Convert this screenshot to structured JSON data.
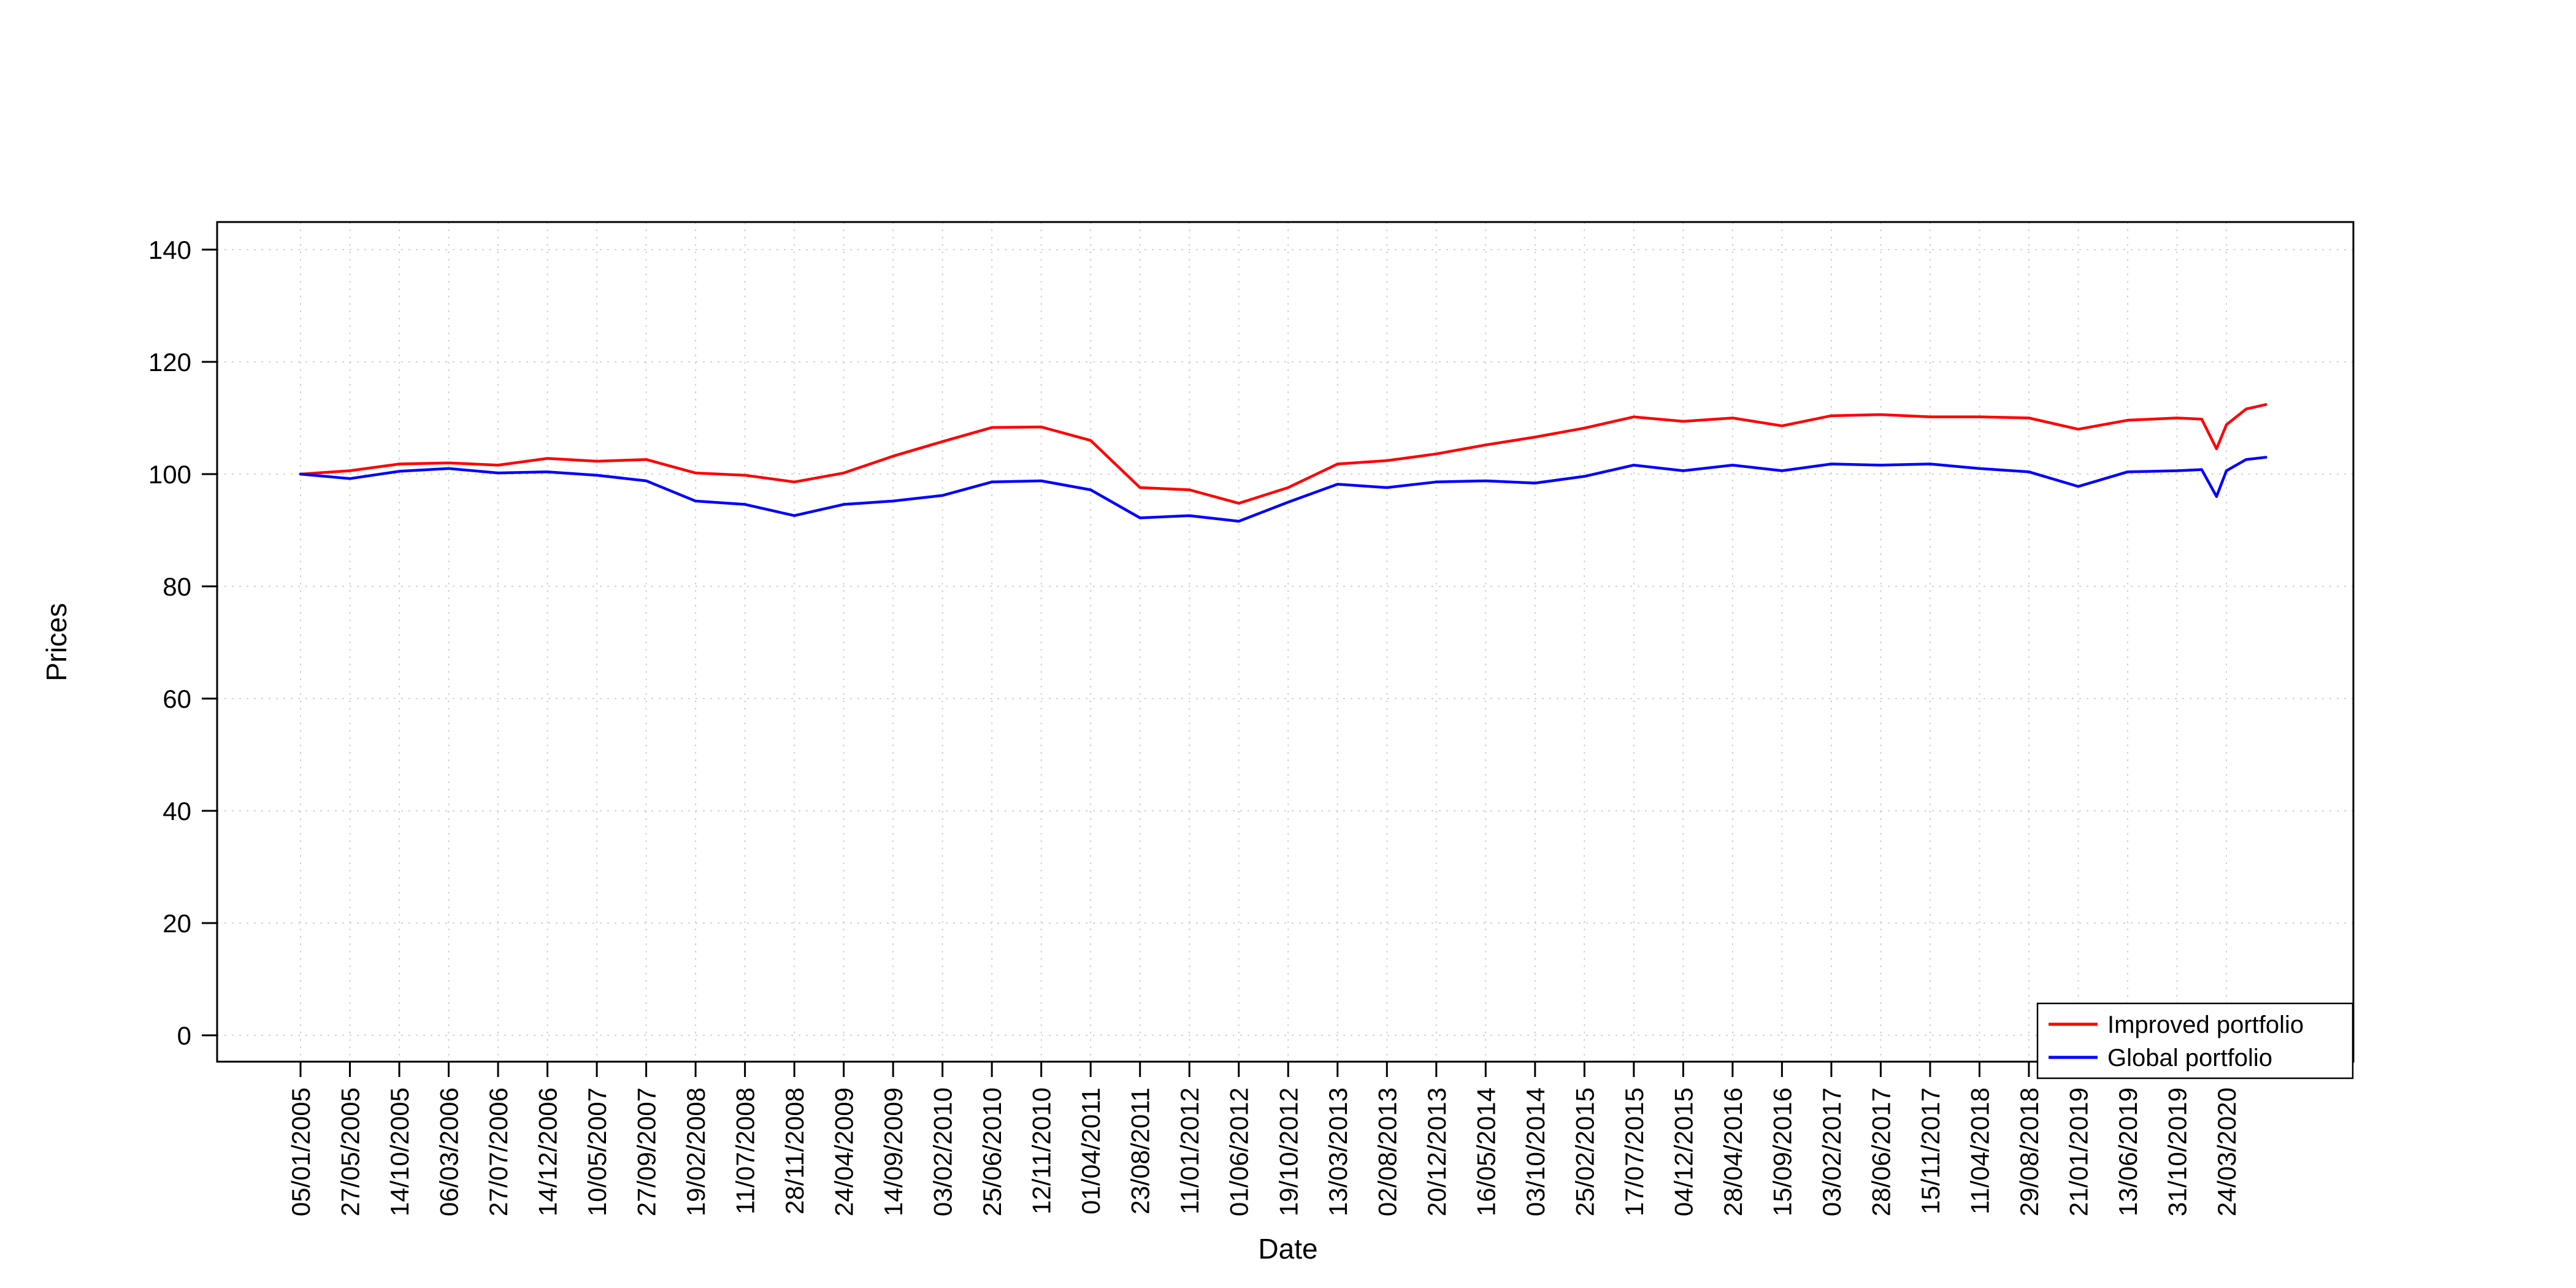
{
  "chart_data": {
    "type": "line",
    "title": "",
    "xlabel": "Date",
    "ylabel": "Prices",
    "ylim": [
      0,
      140
    ],
    "yticks": [
      0,
      20,
      40,
      60,
      80,
      100,
      120,
      140
    ],
    "grid": "dotted-lightgray-both-axes",
    "legend_position": "bottom-right",
    "categories": [
      "05/01/2005",
      "27/05/2005",
      "14/10/2005",
      "06/03/2006",
      "27/07/2006",
      "14/12/2006",
      "10/05/2007",
      "27/09/2007",
      "19/02/2008",
      "11/07/2008",
      "28/11/2008",
      "24/04/2009",
      "14/09/2009",
      "03/02/2010",
      "25/06/2010",
      "12/11/2010",
      "01/04/2011",
      "23/08/2011",
      "11/01/2012",
      "01/06/2012",
      "19/10/2012",
      "13/03/2013",
      "02/08/2013",
      "20/12/2013",
      "16/05/2014",
      "03/10/2014",
      "25/02/2015",
      "17/07/2015",
      "04/12/2015",
      "28/04/2016",
      "15/09/2016",
      "03/02/2017",
      "28/06/2017",
      "15/11/2017",
      "11/04/2018",
      "29/08/2018",
      "21/01/2019",
      "13/06/2019",
      "31/10/2019",
      "24/03/2020"
    ],
    "x_pos": [
      0,
      1,
      2,
      3,
      4,
      5,
      6,
      7,
      8,
      9,
      10,
      11,
      12,
      13,
      14,
      15,
      16,
      17,
      18,
      19,
      20,
      21,
      22,
      23,
      24,
      25,
      26,
      27,
      28,
      29,
      30,
      31,
      32,
      33,
      34,
      35,
      36,
      37,
      38,
      38.5,
      38.8,
      39,
      39.4,
      39.8
    ],
    "series": [
      {
        "name": "Improved portfolio",
        "color": "#ff0000",
        "values": [
          100.0,
          100.6,
          101.8,
          102.0,
          101.6,
          102.8,
          102.3,
          102.6,
          100.2,
          99.8,
          98.6,
          100.2,
          103.2,
          105.8,
          108.3,
          108.4,
          106.0,
          97.6,
          97.2,
          94.8,
          97.6,
          101.8,
          102.4,
          103.6,
          105.2,
          106.6,
          108.2,
          110.2,
          109.4,
          110.0,
          108.6,
          110.4,
          110.6,
          110.2,
          110.2,
          110.0,
          108.0,
          109.6,
          110.0,
          109.8,
          104.5,
          108.8,
          111.6,
          112.4
        ]
      },
      {
        "name": "Global portfolio",
        "color": "#0000ff",
        "values": [
          100.0,
          99.2,
          100.5,
          101.0,
          100.2,
          100.4,
          99.8,
          98.8,
          95.2,
          94.6,
          92.6,
          94.6,
          95.2,
          96.2,
          98.6,
          98.8,
          97.2,
          92.2,
          92.6,
          91.6,
          95.0,
          98.2,
          97.6,
          98.6,
          98.8,
          98.4,
          99.6,
          101.6,
          100.6,
          101.6,
          100.6,
          101.8,
          101.6,
          101.8,
          101.0,
          100.4,
          97.8,
          100.4,
          100.6,
          100.8,
          96.0,
          100.6,
          102.6,
          103.0
        ]
      }
    ],
    "legend": {
      "entries": [
        {
          "label": "Improved portfolio",
          "color": "#ff0000"
        },
        {
          "label": "Global portfolio",
          "color": "#0000ff"
        }
      ]
    },
    "colors": {
      "grid": "#d3d3d3",
      "axis": "#000000",
      "background": "#ffffff"
    }
  }
}
